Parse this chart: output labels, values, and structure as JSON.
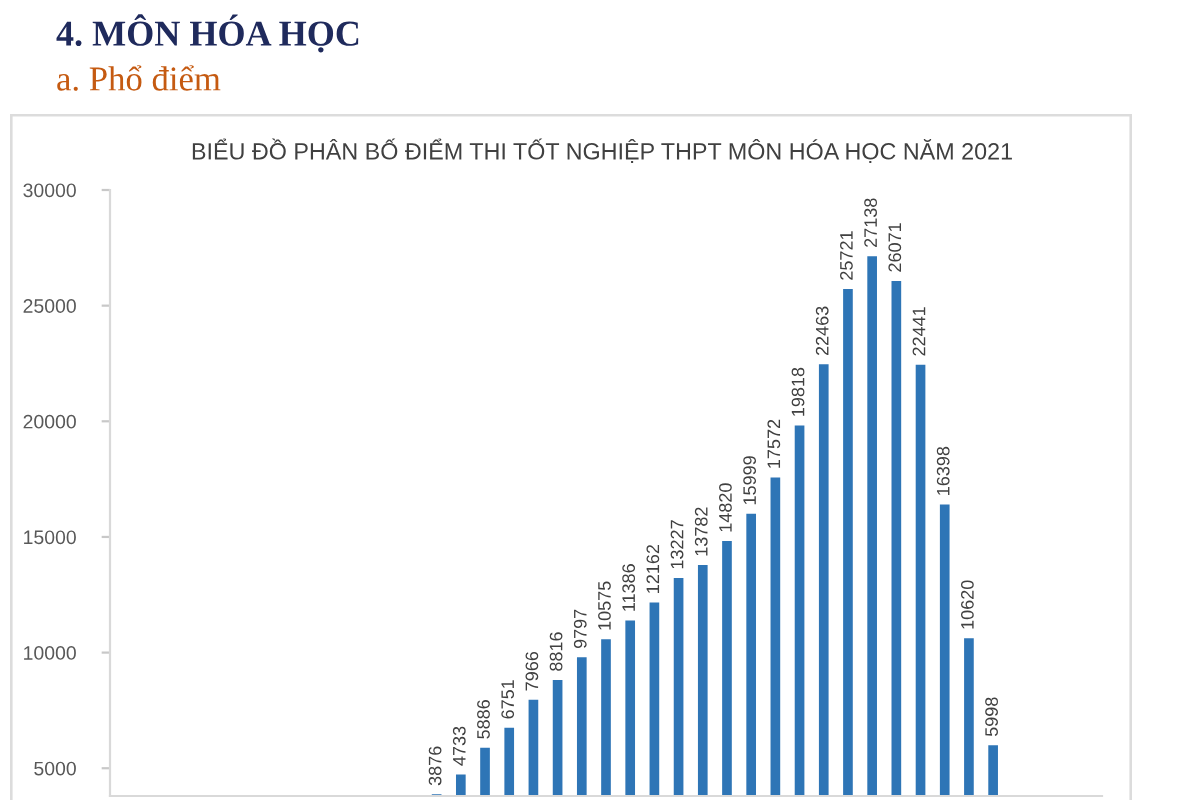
{
  "chart_data": {
    "type": "bar",
    "title": "BIỂU ĐỒ PHÂN BỐ ĐIỂM THI TỐT NGHIỆP THPT MÔN HÓA HỌC NĂM 2021",
    "annotations": [
      "4. MÔN HÓA HỌC",
      "a. Phổ điểm"
    ],
    "categories": [
      null,
      null,
      null,
      null,
      null,
      null,
      null,
      null,
      null,
      null,
      null,
      null,
      null,
      null,
      null,
      null,
      null,
      null,
      null,
      null,
      null,
      null,
      null,
      null,
      null,
      null,
      null,
      null,
      null,
      null,
      null,
      null,
      null,
      null,
      null,
      null,
      null,
      null,
      null,
      null,
      null
    ],
    "values": [
      null,
      null,
      null,
      null,
      null,
      null,
      null,
      null,
      null,
      null,
      null,
      null,
      null,
      3876,
      4733,
      5886,
      6751,
      7966,
      8816,
      9797,
      10575,
      11386,
      12162,
      13227,
      13782,
      14820,
      15999,
      17572,
      19818,
      22463,
      25721,
      27138,
      26071,
      22441,
      16398,
      10620,
      5998,
      null,
      null,
      null,
      null
    ],
    "color": "#2e75b6",
    "ylim": [
      3800,
      30000
    ],
    "yticks": [
      5000,
      10000,
      15000,
      20000,
      25000,
      30000
    ],
    "data_labels": true,
    "tick_labels": "y"
  }
}
